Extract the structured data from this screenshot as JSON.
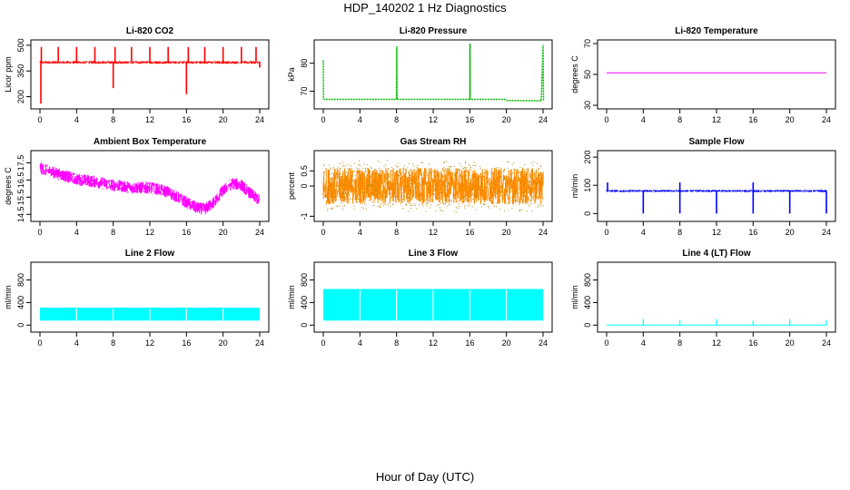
{
  "figure": {
    "title": "HDP_140202  1 Hz Diagnostics",
    "footer_label": "Hour of Day (UTC)"
  },
  "chart_data": [
    {
      "type": "line",
      "title": "Li-820 CO2",
      "ylabel": "Licor ppm",
      "color": "#ff0000",
      "xlim": [
        0,
        24
      ],
      "ylim": [
        150,
        510
      ],
      "xticks": [
        0,
        4,
        8,
        12,
        16,
        20,
        24
      ],
      "yticks": [
        200,
        350,
        500
      ],
      "baseline": 400,
      "noise": 8,
      "spikes_up": [
        0.15,
        2,
        4,
        6,
        8.2,
        10,
        12,
        14,
        16.2,
        18,
        20,
        22,
        23.6
      ],
      "spike_up_to": 490,
      "spikes_down": [
        [
          0.1,
          160
        ],
        [
          8.0,
          250
        ],
        [
          16.0,
          215
        ],
        [
          24.0,
          370
        ]
      ],
      "x": [
        0,
        24
      ],
      "y": [
        400,
        400
      ]
    },
    {
      "type": "line",
      "title": "Li-820 Pressure",
      "ylabel": "kPa",
      "color": "#00bb00",
      "xlim": [
        0,
        24
      ],
      "ylim": [
        65,
        87
      ],
      "xticks": [
        0,
        4,
        8,
        12,
        16,
        20,
        24
      ],
      "yticks": [
        70,
        80
      ],
      "x": [
        0,
        0.02,
        0.05,
        0.15,
        8,
        8.02,
        8.05,
        16,
        16.02,
        16.05,
        19.8,
        20,
        23.8,
        24,
        24.05
      ],
      "y": [
        81,
        67.5,
        67.2,
        67.1,
        67.1,
        86,
        67.1,
        67.1,
        87,
        67.1,
        67.1,
        66.7,
        66.6,
        86.5,
        66.6
      ]
    },
    {
      "type": "line",
      "title": "Li-820 Temperature",
      "ylabel": "degrees C",
      "color": "#ee00ee",
      "xlim": [
        0,
        24
      ],
      "ylim": [
        30,
        70
      ],
      "xticks": [
        0,
        4,
        8,
        12,
        16,
        20,
        24
      ],
      "yticks": [
        30,
        50,
        70
      ],
      "x": [
        0,
        24
      ],
      "y": [
        51,
        51
      ]
    },
    {
      "type": "line",
      "title": "Ambient Box Temperature",
      "ylabel": "degrees C",
      "color": "#ff00ff",
      "xlim": [
        0,
        24
      ],
      "ylim": [
        14.3,
        18.0
      ],
      "xticks": [
        0,
        4,
        8,
        12,
        16,
        20,
        24
      ],
      "yticks": [
        14.5,
        15.5,
        16.5,
        17.5
      ],
      "noise": 0.35,
      "x": [
        0,
        2,
        4,
        6,
        8,
        10,
        12,
        13,
        14,
        15,
        16,
        17,
        18,
        19,
        20,
        21,
        22,
        23,
        24
      ],
      "y": [
        17.2,
        16.85,
        16.55,
        16.4,
        16.2,
        16.05,
        16.05,
        15.95,
        15.8,
        15.5,
        15.2,
        14.9,
        14.8,
        15.2,
        15.9,
        16.3,
        16.2,
        15.7,
        15.3
      ]
    },
    {
      "type": "line",
      "title": "Gas Stream RH",
      "ylabel": "percent",
      "color": "#ff8c00",
      "xlim": [
        0,
        24
      ],
      "ylim": [
        -1.05,
        1.05
      ],
      "xticks": [
        0,
        4,
        8,
        12,
        16,
        20,
        24
      ],
      "yticks": [
        -1.0,
        0.0,
        0.5
      ],
      "noise": 0.6,
      "x": [
        0,
        24
      ],
      "y": [
        0.0,
        0.0
      ]
    },
    {
      "type": "line",
      "title": "Sample Flow",
      "ylabel": "ml/min",
      "color": "#0000ff",
      "xlim": [
        0,
        24
      ],
      "ylim": [
        -15,
        210
      ],
      "xticks": [
        0,
        4,
        8,
        12,
        16,
        20,
        24
      ],
      "yticks": [
        0,
        100,
        200
      ],
      "baseline": 80,
      "noise": 4,
      "spikes_down": [
        [
          4,
          0
        ],
        [
          8,
          0
        ],
        [
          12,
          0
        ],
        [
          16,
          0
        ],
        [
          20,
          0
        ],
        [
          24,
          0
        ]
      ],
      "spikes_up": [
        0.1,
        8.0,
        16.0
      ],
      "spike_up_to": 110,
      "x": [
        0,
        24
      ],
      "y": [
        80,
        80
      ]
    },
    {
      "type": "area",
      "title": "Line 2 Flow",
      "ylabel": "ml/min",
      "color": "#00ffff",
      "xlim": [
        0,
        24
      ],
      "ylim": [
        -60,
        1050
      ],
      "xticks": [
        0,
        4,
        8,
        12,
        16,
        20,
        24
      ],
      "yticks": [
        0,
        400,
        800
      ],
      "band": [
        80,
        310
      ],
      "x": [
        0,
        24
      ],
      "y": [
        310,
        310
      ]
    },
    {
      "type": "area",
      "title": "Line 3 Flow",
      "ylabel": "ml/min",
      "color": "#00ffff",
      "xlim": [
        0,
        24
      ],
      "ylim": [
        -60,
        1050
      ],
      "xticks": [
        0,
        4,
        8,
        12,
        16,
        20,
        24
      ],
      "yticks": [
        0,
        400,
        800
      ],
      "band": [
        80,
        640
      ],
      "x": [
        0,
        24
      ],
      "y": [
        640,
        640
      ]
    },
    {
      "type": "line",
      "title": "Line 4 (LT) Flow",
      "ylabel": "ml/min",
      "color": "#00ffff",
      "xlim": [
        0,
        24
      ],
      "ylim": [
        -60,
        1050
      ],
      "xticks": [
        0,
        4,
        8,
        12,
        16,
        20,
        24
      ],
      "yticks": [
        0,
        400,
        800
      ],
      "x": [
        0,
        3.98,
        4,
        4.02,
        7.98,
        8,
        8.02,
        11.98,
        12,
        12.02,
        15.98,
        16,
        16.02,
        19.98,
        20,
        20.02,
        23.98,
        24,
        24.02
      ],
      "y": [
        0,
        0,
        110,
        0,
        0,
        90,
        0,
        0,
        110,
        0,
        0,
        80,
        0,
        0,
        110,
        0,
        0,
        90,
        0
      ]
    }
  ]
}
